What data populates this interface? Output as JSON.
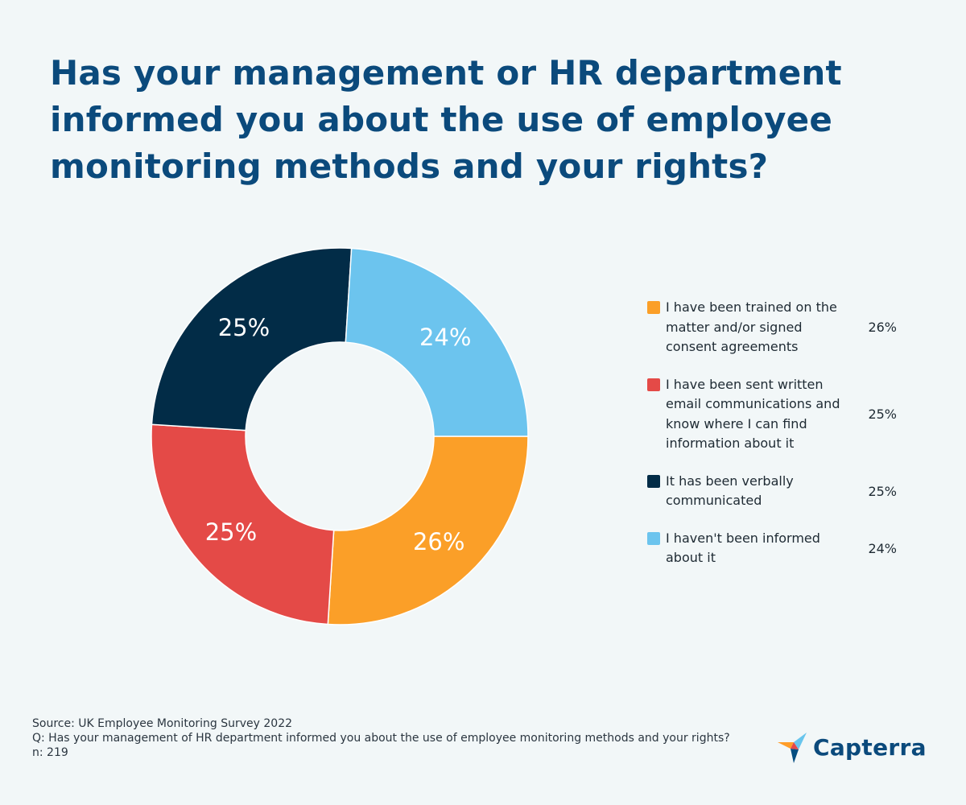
{
  "title": "Has your management or HR department informed you about the use of employee monitoring methods and your rights?",
  "chart_data": {
    "type": "pie",
    "donut": true,
    "categories": [
      "I have been trained on the matter and/or signed consent agreements",
      "I have been sent written email communications and know where I can find information about it",
      "It has been verbally communicated",
      "I haven't been informed about it"
    ],
    "values": [
      26,
      25,
      25,
      24
    ],
    "value_labels": [
      "26%",
      "25%",
      "25%",
      "24%"
    ],
    "colors": [
      "#fb9f28",
      "#e44a47",
      "#022c47",
      "#6cc4ee"
    ],
    "legend_placement": "right"
  },
  "footer": {
    "source": "Source: UK Employee Monitoring Survey 2022",
    "question": "Q: Has your management of HR department informed you about the use of employee monitoring methods and your rights?",
    "n": "n: 219"
  },
  "logo": {
    "icon": "capterra-logo-icon",
    "text": "Capterra"
  }
}
